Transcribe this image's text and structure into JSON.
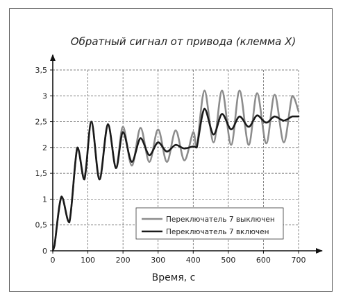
{
  "chart_data": {
    "type": "line",
    "title": "Обратный сигнал от привода (клемма X)",
    "xlabel": "Время, с",
    "ylabel": "",
    "xlim": [
      0,
      700
    ],
    "ylim": [
      0,
      3.5
    ],
    "xticks": [
      0,
      100,
      200,
      300,
      400,
      500,
      600,
      700
    ],
    "xtick_labels": [
      "0",
      "100",
      "200",
      "300",
      "400",
      "500",
      "600",
      "700"
    ],
    "yticks": [
      0,
      0.5,
      1,
      1.5,
      2,
      2.5,
      3,
      3.5
    ],
    "ytick_labels": [
      "0",
      "0,5",
      "1",
      "1,5",
      "2",
      "2,5",
      "3",
      "3,5"
    ],
    "grid": true,
    "legend_position": "bottom-right",
    "series": [
      {
        "name": "Переключатель 7 выключен",
        "color": "#8c8c8c",
        "x": [
          0,
          5,
          25,
          47,
          70,
          90,
          110,
          133,
          157,
          180,
          200,
          225,
          250,
          275,
          300,
          325,
          350,
          375,
          400,
          410,
          432,
          458,
          482,
          508,
          532,
          558,
          582,
          608,
          632,
          658,
          682,
          700
        ],
        "y": [
          0,
          0.1,
          1.05,
          0.55,
          2.0,
          1.42,
          2.48,
          1.42,
          2.45,
          1.62,
          2.4,
          1.65,
          2.38,
          1.72,
          2.35,
          1.72,
          2.33,
          1.75,
          2.3,
          2.0,
          3.1,
          2.1,
          3.1,
          2.05,
          3.1,
          2.05,
          3.05,
          2.08,
          3.02,
          2.1,
          3.0,
          2.7
        ]
      },
      {
        "name": "Переключатель 7 включен",
        "color": "#1a1a1a",
        "x": [
          0,
          5,
          25,
          47,
          70,
          90,
          110,
          133,
          157,
          180,
          200,
          225,
          250,
          275,
          300,
          325,
          350,
          375,
          400,
          410,
          432,
          458,
          482,
          508,
          532,
          558,
          582,
          608,
          632,
          658,
          682,
          700
        ],
        "y": [
          0,
          0.1,
          1.05,
          0.55,
          2.0,
          1.38,
          2.5,
          1.38,
          2.45,
          1.6,
          2.3,
          1.72,
          2.18,
          1.85,
          2.1,
          1.92,
          2.05,
          1.98,
          2.02,
          2.0,
          2.75,
          2.25,
          2.65,
          2.35,
          2.6,
          2.4,
          2.62,
          2.48,
          2.6,
          2.52,
          2.6,
          2.6
        ]
      }
    ]
  }
}
